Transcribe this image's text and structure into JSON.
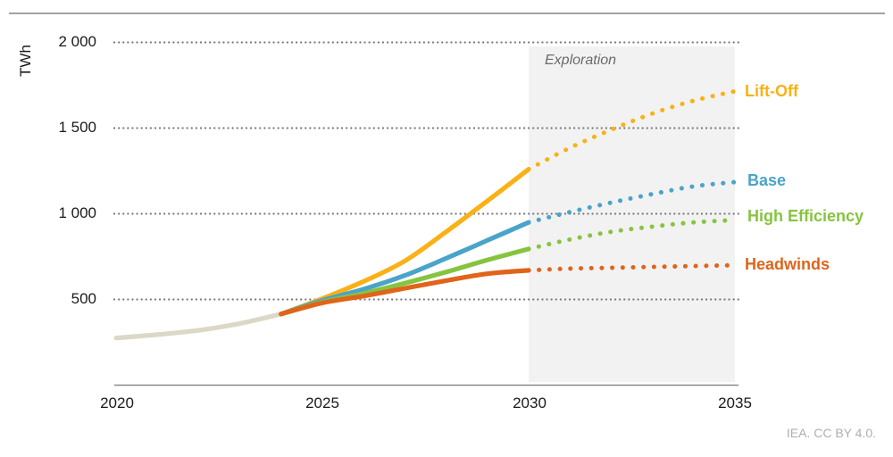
{
  "annotations": {
    "unit": "TWh",
    "projection_label": "Exploration",
    "attribution": "IEA. CC BY 4.0."
  },
  "chart_data": {
    "type": "line",
    "title": "",
    "ylabel": "TWh",
    "xlabel": "",
    "ylim": [
      0,
      2100
    ],
    "xlim": [
      2020,
      2035
    ],
    "grid": "dotted-horizontal",
    "legend_position": "right-of-line-ends",
    "x_ticks": [
      {
        "label": "2020",
        "year": 2020
      },
      {
        "label": "2025",
        "year": 2025
      },
      {
        "label": "2030",
        "year": 2030
      },
      {
        "label": "2035",
        "year": 2035
      }
    ],
    "y_ticks": [
      {
        "label": "2 000",
        "value": 2000
      },
      {
        "label": "1 500",
        "value": 1500
      },
      {
        "label": "1 000",
        "value": 1000
      },
      {
        "label": "500",
        "value": 500
      }
    ],
    "projection_region": {
      "from": 2030,
      "to": 2035,
      "label": "Exploration"
    },
    "colors": {
      "grid": "#7a7a7a",
      "axis": "#8a8a8a",
      "top_rule": "#a2a2a2",
      "projection_shade": "#f2f2f2",
      "tick_text": "#1a1a1a",
      "projection_text": "#6a6a6a",
      "attribution_text": "#b0aeae"
    },
    "series": [
      {
        "key": "historical",
        "label": "",
        "color": "#dbd8c5",
        "solid_years": [
          2020,
          2021,
          2022,
          2023,
          2024
        ],
        "solid_values": [
          275,
          295,
          320,
          360,
          415
        ]
      },
      {
        "key": "lift-off",
        "label": "Lift-Off",
        "color": "#f9b116",
        "solid_years": [
          2024,
          2025,
          2026,
          2027,
          2028,
          2029,
          2030
        ],
        "solid_values": [
          415,
          505,
          605,
          725,
          895,
          1075,
          1260
        ],
        "dotted_years": [
          2030,
          2031,
          2032,
          2033,
          2034,
          2035
        ],
        "dotted_values": [
          1260,
          1385,
          1490,
          1585,
          1660,
          1715
        ]
      },
      {
        "key": "base",
        "label": "Base",
        "color": "#4aa4c9",
        "solid_years": [
          2024,
          2025,
          2026,
          2027,
          2028,
          2029,
          2030
        ],
        "solid_values": [
          415,
          495,
          560,
          640,
          740,
          845,
          950
        ],
        "dotted_years": [
          2030,
          2031,
          2032,
          2033,
          2034,
          2035
        ],
        "dotted_values": [
          950,
          1010,
          1065,
          1115,
          1160,
          1185
        ]
      },
      {
        "key": "high-efficiency",
        "label": "High Efficiency",
        "color": "#86c440",
        "solid_years": [
          2024,
          2025,
          2026,
          2027,
          2028,
          2029,
          2030
        ],
        "solid_values": [
          415,
          485,
          535,
          595,
          660,
          730,
          795
        ],
        "dotted_years": [
          2030,
          2031,
          2032,
          2033,
          2034,
          2035
        ],
        "dotted_values": [
          795,
          850,
          895,
          925,
          950,
          963
        ]
      },
      {
        "key": "headwinds",
        "label": "Headwinds",
        "color": "#e0641a",
        "solid_years": [
          2024,
          2025,
          2026,
          2027,
          2028,
          2029,
          2030
        ],
        "solid_values": [
          415,
          480,
          520,
          565,
          610,
          650,
          670
        ],
        "dotted_years": [
          2030,
          2031,
          2032,
          2033,
          2034,
          2035
        ],
        "dotted_values": [
          670,
          680,
          685,
          690,
          695,
          700
        ]
      }
    ]
  }
}
